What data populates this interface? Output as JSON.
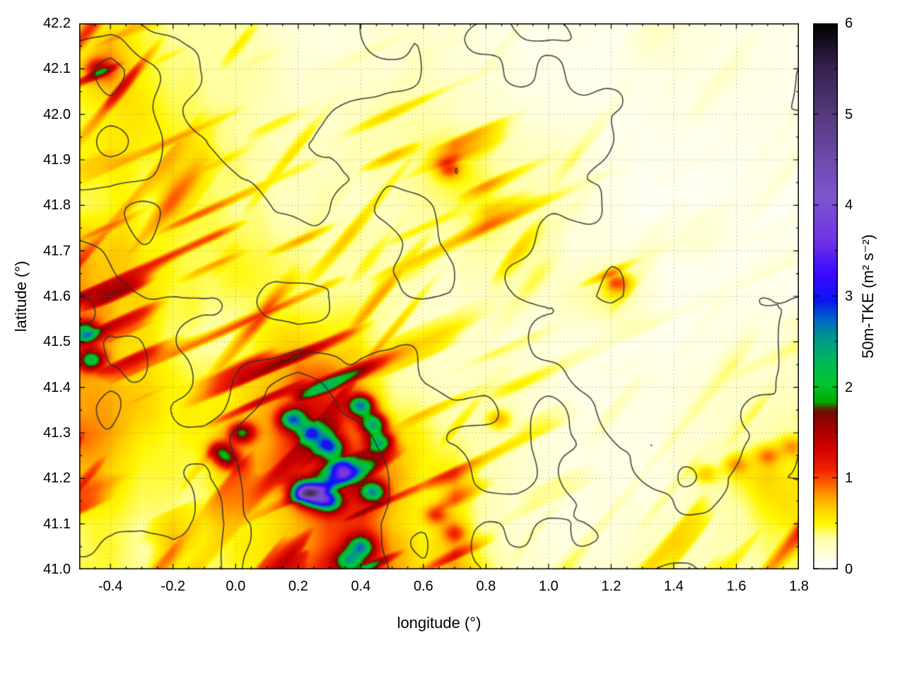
{
  "figure": {
    "background": "#ffffff"
  },
  "chart_data": {
    "type": "heatmap",
    "title": "",
    "xlabel": "longitude (°)",
    "ylabel": "latitude (°)",
    "xlim": [
      -0.5,
      1.8
    ],
    "ylim": [
      41.0,
      42.2
    ],
    "x_tick_labels": [
      "-0.4",
      "-0.2",
      "0.0",
      "0.2",
      "0.4",
      "0.6",
      "0.8",
      "1.0",
      "1.2",
      "1.4",
      "1.6",
      "1.8"
    ],
    "y_tick_labels": [
      "41.0",
      "41.1",
      "41.2",
      "41.3",
      "41.4",
      "41.5",
      "41.6",
      "41.7",
      "41.8",
      "41.9",
      "42.0",
      "42.1",
      "42.2"
    ],
    "grid": {
      "on": true,
      "style": "dotted",
      "color": "#787878"
    },
    "contour_color": "#2d2d2d",
    "contour_levels": [
      0.37,
      0.49,
      0.61
    ],
    "colorbar": {
      "label": "50m-TKE (m² s⁻²)",
      "min": 0,
      "max": 6,
      "tick_labels": [
        "0",
        "1",
        "2",
        "3",
        "4",
        "5",
        "6"
      ],
      "stops": [
        [
          0.0,
          "#ffffff"
        ],
        [
          0.15,
          "#ffffe0"
        ],
        [
          0.35,
          "#ffffa0"
        ],
        [
          0.5,
          "#fff700"
        ],
        [
          0.65,
          "#ffd300"
        ],
        [
          0.8,
          "#ffa000"
        ],
        [
          0.95,
          "#ff5a00"
        ],
        [
          1.1,
          "#ef2100"
        ],
        [
          1.35,
          "#cd0000"
        ],
        [
          1.55,
          "#a50000"
        ],
        [
          1.72,
          "#730b00"
        ],
        [
          1.76,
          "#5a2800"
        ],
        [
          1.84,
          "#00aa00"
        ],
        [
          2.05,
          "#00c832"
        ],
        [
          2.3,
          "#00b45f"
        ],
        [
          2.55,
          "#00968c"
        ],
        [
          2.75,
          "#0064c8"
        ],
        [
          2.95,
          "#0a14f0"
        ],
        [
          3.25,
          "#3c0aff"
        ],
        [
          3.6,
          "#6e32e6"
        ],
        [
          4.1,
          "#7d55cd"
        ],
        [
          4.5,
          "#6e4bab"
        ],
        [
          5.0,
          "#55397d"
        ],
        [
          5.5,
          "#372350"
        ],
        [
          6.0,
          "#000000"
        ]
      ]
    },
    "field": {
      "units": "m² s⁻²",
      "lon": [
        -0.5,
        -0.4,
        -0.3,
        -0.2,
        -0.1,
        0.0,
        0.1,
        0.2,
        0.3,
        0.4,
        0.5,
        0.6,
        0.7,
        0.8,
        0.9,
        1.0,
        1.1,
        1.2,
        1.3,
        1.4,
        1.5,
        1.6,
        1.7,
        1.8
      ],
      "lat": [
        41.0,
        41.1,
        41.2,
        41.3,
        41.4,
        41.5,
        41.6,
        41.7,
        41.8,
        41.9,
        42.0,
        42.1,
        42.2
      ],
      "values": [
        [
          0.5,
          0.55,
          0.35,
          0.5,
          0.4,
          0.5,
          0.7,
          0.9,
          1.3,
          1.4,
          0.8,
          0.5,
          0.7,
          0.4,
          0.25,
          0.2,
          0.2,
          0.25,
          0.3,
          0.3,
          0.35,
          0.35,
          0.4,
          0.4
        ],
        [
          0.5,
          0.5,
          0.4,
          0.45,
          0.35,
          0.45,
          0.65,
          0.9,
          1.2,
          1.1,
          0.6,
          0.4,
          0.55,
          0.3,
          0.2,
          0.15,
          0.15,
          0.2,
          0.25,
          0.3,
          0.35,
          0.45,
          0.5,
          0.55
        ],
        [
          0.7,
          0.6,
          0.5,
          0.5,
          0.45,
          0.6,
          0.9,
          1.3,
          1.6,
          1.2,
          0.7,
          0.45,
          0.6,
          0.35,
          0.2,
          0.15,
          0.15,
          0.15,
          0.2,
          0.25,
          0.35,
          0.55,
          0.65,
          0.6
        ],
        [
          0.9,
          0.8,
          0.6,
          0.55,
          0.5,
          0.7,
          1.0,
          1.4,
          1.3,
          1.0,
          0.7,
          0.5,
          0.4,
          0.3,
          0.25,
          0.2,
          0.15,
          0.15,
          0.15,
          0.2,
          0.2,
          0.25,
          0.3,
          0.3
        ],
        [
          0.9,
          0.85,
          0.7,
          0.6,
          0.55,
          0.6,
          0.9,
          1.2,
          1.0,
          0.9,
          0.5,
          0.35,
          0.3,
          0.3,
          0.25,
          0.2,
          0.15,
          0.15,
          0.15,
          0.15,
          0.15,
          0.2,
          0.2,
          0.2
        ],
        [
          1.0,
          0.9,
          0.7,
          0.6,
          0.5,
          0.5,
          0.6,
          0.7,
          0.6,
          0.5,
          0.4,
          0.3,
          0.3,
          0.25,
          0.2,
          0.2,
          0.15,
          0.1,
          0.1,
          0.1,
          0.1,
          0.15,
          0.15,
          0.15
        ],
        [
          0.9,
          0.8,
          0.65,
          0.55,
          0.5,
          0.5,
          0.55,
          0.5,
          0.45,
          0.4,
          0.35,
          0.3,
          0.25,
          0.25,
          0.2,
          0.2,
          0.3,
          0.45,
          0.25,
          0.1,
          0.1,
          0.1,
          0.1,
          0.1
        ],
        [
          0.8,
          0.7,
          0.55,
          0.5,
          0.45,
          0.45,
          0.5,
          0.45,
          0.4,
          0.35,
          0.3,
          0.3,
          0.3,
          0.35,
          0.3,
          0.2,
          0.15,
          0.2,
          0.15,
          0.1,
          0.1,
          0.1,
          0.1,
          0.1
        ],
        [
          0.5,
          0.55,
          0.5,
          0.5,
          0.45,
          0.4,
          0.4,
          0.35,
          0.3,
          0.3,
          0.3,
          0.35,
          0.4,
          0.45,
          0.35,
          0.25,
          0.2,
          0.15,
          0.1,
          0.1,
          0.1,
          0.1,
          0.1,
          0.1
        ],
        [
          0.45,
          0.5,
          0.45,
          0.45,
          0.4,
          0.35,
          0.3,
          0.3,
          0.25,
          0.3,
          0.35,
          0.4,
          0.55,
          0.4,
          0.3,
          0.25,
          0.2,
          0.15,
          0.1,
          0.1,
          0.1,
          0.1,
          0.1,
          0.1
        ],
        [
          0.4,
          0.45,
          0.5,
          0.4,
          0.35,
          0.3,
          0.25,
          0.2,
          0.2,
          0.25,
          0.3,
          0.3,
          0.3,
          0.25,
          0.2,
          0.15,
          0.15,
          0.1,
          0.1,
          0.1,
          0.1,
          0.1,
          0.1,
          0.1
        ],
        [
          0.5,
          0.8,
          0.5,
          0.35,
          0.3,
          0.3,
          0.25,
          0.15,
          0.15,
          0.2,
          0.2,
          0.25,
          0.2,
          0.2,
          0.15,
          0.1,
          0.1,
          0.1,
          0.1,
          0.1,
          0.1,
          0.1,
          0.1,
          0.15
        ],
        [
          0.4,
          0.5,
          0.4,
          0.3,
          0.3,
          0.3,
          0.2,
          0.15,
          0.1,
          0.15,
          0.2,
          0.2,
          0.15,
          0.15,
          0.1,
          0.1,
          0.1,
          0.1,
          0.1,
          0.1,
          0.1,
          0.1,
          0.1,
          0.1
        ]
      ]
    },
    "hotspots": [
      [
        -0.48,
        41.52,
        1.6
      ],
      [
        -0.46,
        41.46,
        1.4
      ],
      [
        -0.44,
        42.1,
        0.7
      ],
      [
        0.02,
        41.3,
        1.2
      ],
      [
        -0.05,
        41.26,
        1.0
      ],
      [
        -0.02,
        41.24,
        0.9
      ],
      [
        0.18,
        41.33,
        1.7
      ],
      [
        0.24,
        41.3,
        1.5
      ],
      [
        0.3,
        41.27,
        1.6
      ],
      [
        0.4,
        41.36,
        1.9
      ],
      [
        0.44,
        41.32,
        1.7
      ],
      [
        0.46,
        41.28,
        1.5
      ],
      [
        0.34,
        41.22,
        1.5
      ],
      [
        0.22,
        41.17,
        2.6
      ],
      [
        0.26,
        41.16,
        2.0
      ],
      [
        0.3,
        41.15,
        1.5
      ],
      [
        0.44,
        41.17,
        1.6
      ],
      [
        0.4,
        41.05,
        1.4
      ],
      [
        0.36,
        41.02,
        1.2
      ],
      [
        0.68,
        41.88,
        0.6
      ],
      [
        1.22,
        41.63,
        0.7
      ],
      [
        0.84,
        41.33,
        0.5
      ],
      [
        1.5,
        41.21,
        0.4
      ],
      [
        1.6,
        41.23,
        0.45
      ],
      [
        1.7,
        41.25,
        0.45
      ],
      [
        1.78,
        41.27,
        0.4
      ],
      [
        0.64,
        41.12,
        0.6
      ],
      [
        0.7,
        41.08,
        0.5
      ]
    ]
  }
}
